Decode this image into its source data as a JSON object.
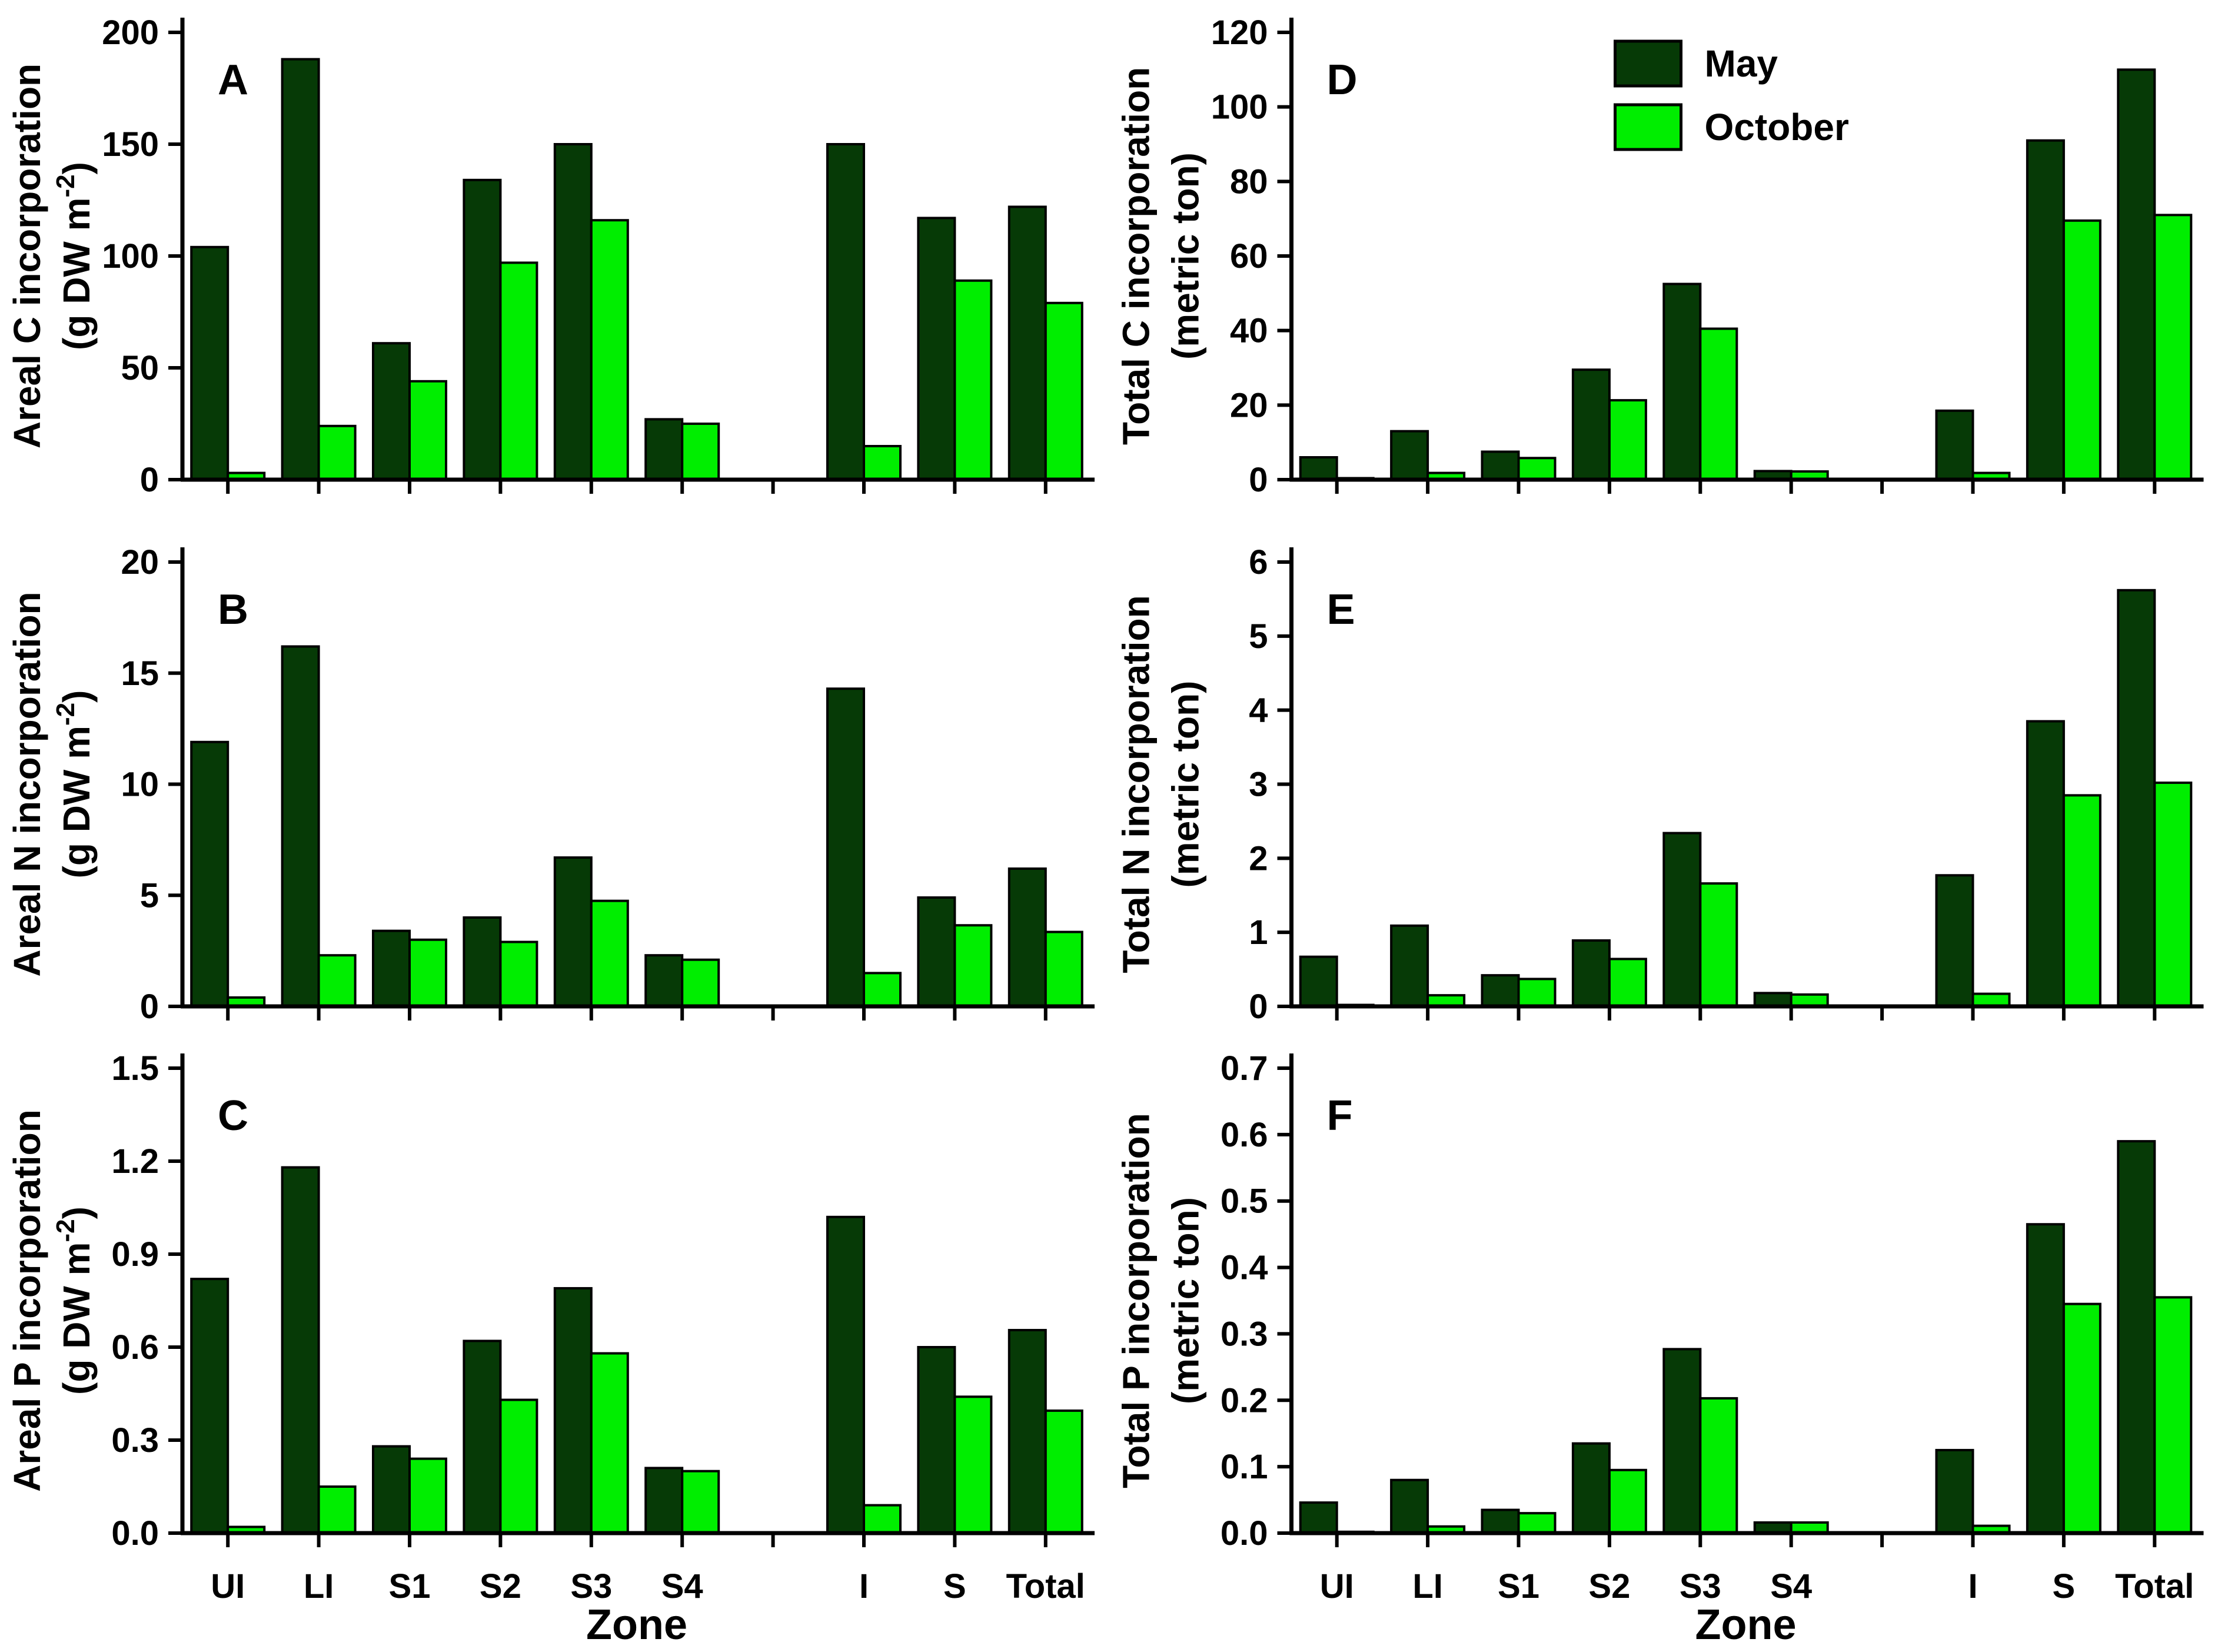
{
  "figure": {
    "x_axis_title": "Zone",
    "background": "#ffffff",
    "colors": {
      "may": "#063a06",
      "october": "#00ee00",
      "axis": "#000000",
      "bar_outline": "#000000"
    },
    "legend": {
      "position": "top-right-of-panel-D",
      "items": [
        {
          "label": "May",
          "color": "#063a06"
        },
        {
          "label": "October",
          "color": "#00ee00"
        }
      ]
    },
    "categories": [
      "UI",
      "LI",
      "S1",
      "S2",
      "S3",
      "S4",
      "I",
      "S",
      "Total"
    ],
    "category_slots": [
      1,
      2,
      3,
      4,
      5,
      6,
      8,
      9,
      10
    ],
    "n_slots": 10
  },
  "chart_data": [
    {
      "panel": "A",
      "type": "bar",
      "ylabel_line1": "Areal C incorporation",
      "ylabel2_pre": "(g DW m",
      "ylabel2_sup": "-2",
      "ylabel2_post": ")",
      "ylim": [
        0,
        200
      ],
      "ytick_values": [
        0,
        50,
        100,
        150,
        200
      ],
      "ytick_labels": [
        "0",
        "50",
        "100",
        "150",
        "200"
      ],
      "grid": false,
      "show_legend": false,
      "series": [
        {
          "name": "May",
          "values": [
            104,
            188,
            61,
            134,
            150,
            27,
            150,
            117,
            122
          ]
        },
        {
          "name": "October",
          "values": [
            3,
            24,
            44,
            97,
            116,
            25,
            15,
            89,
            79
          ]
        }
      ]
    },
    {
      "panel": "B",
      "type": "bar",
      "ylabel_line1": "Areal N incorporation",
      "ylabel2_pre": "(g DW m",
      "ylabel2_sup": "-2",
      "ylabel2_post": ")",
      "ylim": [
        0,
        20
      ],
      "ytick_values": [
        0,
        5,
        10,
        15,
        20
      ],
      "ytick_labels": [
        "0",
        "5",
        "10",
        "15",
        "20"
      ],
      "grid": false,
      "show_legend": false,
      "series": [
        {
          "name": "May",
          "values": [
            11.9,
            16.2,
            3.4,
            4.0,
            6.7,
            2.3,
            14.3,
            4.9,
            6.2
          ]
        },
        {
          "name": "October",
          "values": [
            0.4,
            2.3,
            3.0,
            2.9,
            4.75,
            2.1,
            1.5,
            3.65,
            3.35
          ]
        }
      ]
    },
    {
      "panel": "C",
      "type": "bar",
      "ylabel_line1": "Areal P incorporation",
      "ylabel2_pre": "(g DW m",
      "ylabel2_sup": "-2",
      "ylabel2_post": ")",
      "ylim": [
        0,
        1.5
      ],
      "ytick_values": [
        0.0,
        0.3,
        0.6,
        0.9,
        1.2,
        1.5
      ],
      "ytick_labels": [
        "0.0",
        "0.3",
        "0.6",
        "0.9",
        "1.2",
        "1.5"
      ],
      "grid": false,
      "show_legend": false,
      "series": [
        {
          "name": "May",
          "values": [
            0.82,
            1.18,
            0.28,
            0.62,
            0.79,
            0.21,
            1.02,
            0.6,
            0.655
          ]
        },
        {
          "name": "October",
          "values": [
            0.02,
            0.15,
            0.24,
            0.43,
            0.58,
            0.2,
            0.09,
            0.44,
            0.395
          ]
        }
      ]
    },
    {
      "panel": "D",
      "type": "bar",
      "ylabel_line1": "Total C incorporation",
      "ylabel2_pre": "(metric ton)",
      "ylabel2_sup": "",
      "ylabel2_post": "",
      "ylim": [
        0,
        120
      ],
      "ytick_values": [
        0,
        20,
        40,
        60,
        80,
        100,
        120
      ],
      "ytick_labels": [
        "0",
        "20",
        "40",
        "60",
        "80",
        "100",
        "120"
      ],
      "grid": false,
      "show_legend": true,
      "series": [
        {
          "name": "May",
          "values": [
            6,
            13,
            7.5,
            29.5,
            52.5,
            2.3,
            18.5,
            91,
            110
          ]
        },
        {
          "name": "October",
          "values": [
            0.4,
            1.8,
            5.8,
            21.3,
            40.5,
            2.2,
            1.8,
            69.5,
            71
          ]
        }
      ]
    },
    {
      "panel": "E",
      "type": "bar",
      "ylabel_line1": "Total N incorporation",
      "ylabel2_pre": "(metric ton)",
      "ylabel2_sup": "",
      "ylabel2_post": "",
      "ylim": [
        0,
        6
      ],
      "ytick_values": [
        0,
        1,
        2,
        3,
        4,
        5,
        6
      ],
      "ytick_labels": [
        "0",
        "1",
        "2",
        "3",
        "4",
        "5",
        "6"
      ],
      "grid": false,
      "show_legend": false,
      "series": [
        {
          "name": "May",
          "values": [
            0.67,
            1.09,
            0.42,
            0.89,
            2.34,
            0.18,
            1.77,
            3.85,
            5.62
          ]
        },
        {
          "name": "October",
          "values": [
            0.02,
            0.15,
            0.37,
            0.64,
            1.66,
            0.16,
            0.17,
            2.85,
            3.02
          ]
        }
      ]
    },
    {
      "panel": "F",
      "type": "bar",
      "ylabel_line1": "Total P incorporation",
      "ylabel2_pre": "(metric ton)",
      "ylabel2_sup": "",
      "ylabel2_post": "",
      "ylim": [
        0,
        0.7
      ],
      "ytick_values": [
        0.0,
        0.1,
        0.2,
        0.3,
        0.4,
        0.5,
        0.6,
        0.7
      ],
      "ytick_labels": [
        "0.0",
        "0.1",
        "0.2",
        "0.3",
        "0.4",
        "0.5",
        "0.6",
        "0.7"
      ],
      "grid": false,
      "show_legend": false,
      "series": [
        {
          "name": "May",
          "values": [
            0.046,
            0.08,
            0.035,
            0.135,
            0.277,
            0.016,
            0.125,
            0.465,
            0.59
          ]
        },
        {
          "name": "October",
          "values": [
            0.002,
            0.01,
            0.03,
            0.095,
            0.203,
            0.016,
            0.011,
            0.345,
            0.355
          ]
        }
      ]
    }
  ]
}
